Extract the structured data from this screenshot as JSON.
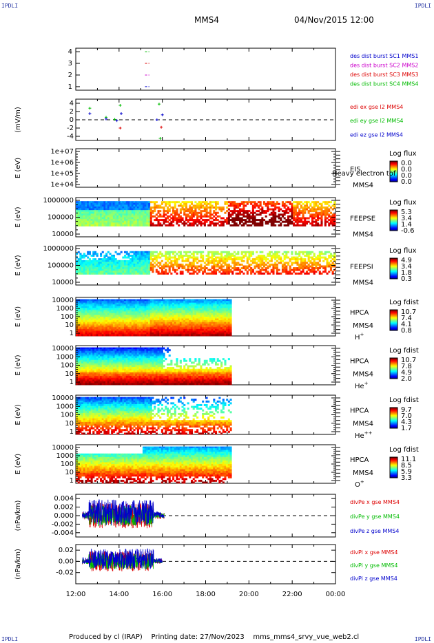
{
  "corner_tag": "IPDLI",
  "header": {
    "spacecraft": "MMS4",
    "datetime": "04/Nov/2015 12:00"
  },
  "footer": {
    "producer": "Produced by cl (IRAP)",
    "printing_date": "Printing date: 27/Nov/2023",
    "filename": "mms_mms4_srvy_vue_web2.cl"
  },
  "colors": {
    "mms1": "#0000cc",
    "mms2": "#cc00cc",
    "mms3": "#dd0000",
    "mms4": "#00bb00",
    "frame": "#000000"
  },
  "chart_data": [
    {
      "type": "line",
      "id": "burst",
      "ylim": [
        0.7,
        4.3
      ],
      "yticks": [
        1,
        2,
        3,
        4
      ],
      "legend": [
        {
          "text": "des dist burst SC1 MMS1",
          "color": "#0000cc"
        },
        {
          "text": "des dist burst SC2 MMS2",
          "color": "#cc00cc"
        },
        {
          "text": "des dist burst SC3 MMS3",
          "color": "#dd0000"
        },
        {
          "text": "des dist burst SC4 MMS4",
          "color": "#00bb00"
        }
      ],
      "series": [
        {
          "y": 4,
          "x": [
            15.2,
            15.4
          ],
          "color": "#00bb00"
        },
        {
          "y": 3,
          "x": [
            15.2,
            15.4
          ],
          "color": "#dd0000"
        },
        {
          "y": 2,
          "x": [
            15.2,
            15.4
          ],
          "color": "#cc00cc"
        },
        {
          "y": 1,
          "x": [
            15.2,
            15.4
          ],
          "color": "#0000cc"
        }
      ]
    },
    {
      "type": "scatter",
      "id": "edi",
      "ylabel": "(mV/m)",
      "ylim": [
        -5,
        5
      ],
      "yticks": [
        4,
        2,
        0,
        -2,
        -4
      ],
      "legend": [
        {
          "text": "edi ex gse l2 MMS4",
          "color": "#dd0000"
        },
        {
          "text": "edi ey gse l2 MMS4",
          "color": "#00bb00"
        },
        {
          "text": "edi ez gse l2 MMS4",
          "color": "#0000cc"
        }
      ],
      "points": [
        {
          "x": 12.65,
          "y": 2.8,
          "c": "#00bb00"
        },
        {
          "x": 12.65,
          "y": 1.5,
          "c": "#0000cc"
        },
        {
          "x": 13.4,
          "y": 0.6,
          "c": "#00bb00"
        },
        {
          "x": 13.4,
          "y": 0.2,
          "c": "#0000cc"
        },
        {
          "x": 13.8,
          "y": 0.1,
          "c": "#00bb00"
        },
        {
          "x": 13.9,
          "y": -0.2,
          "c": "#0000cc"
        },
        {
          "x": 14.05,
          "y": 3.5,
          "c": "#00bb00"
        },
        {
          "x": 14.05,
          "y": -2.0,
          "c": "#dd0000"
        },
        {
          "x": 14.1,
          "y": 1.5,
          "c": "#0000cc"
        },
        {
          "x": 15.75,
          "y": 0.0,
          "c": "#0000cc"
        },
        {
          "x": 15.85,
          "y": 3.8,
          "c": "#00bb00"
        },
        {
          "x": 15.9,
          "y": -4.5,
          "c": "#00bb00"
        },
        {
          "x": 15.95,
          "y": -1.8,
          "c": "#dd0000"
        },
        {
          "x": 16.0,
          "y": 1.2,
          "c": "#0000cc"
        }
      ]
    },
    {
      "type": "heatmap",
      "id": "eis",
      "ylabel": "E (eV)",
      "yticks": [
        "1e+07",
        "1e+06",
        "1e+05",
        "1e+04"
      ],
      "label": "EIS",
      "label2": "MMS4",
      "overlay": "Heavy electron tof",
      "cbar_title": "Log flux",
      "cbar_ticks": [
        "0.0",
        "0.0",
        "0.0",
        "0.0"
      ]
    },
    {
      "type": "heatmap",
      "id": "feepse",
      "ylabel": "E (eV)",
      "yticks": [
        "1000000",
        "100000",
        "10000"
      ],
      "label": "FEEPSE",
      "label2": "MMS4",
      "cbar_title": "Log flux",
      "cbar_ticks": [
        "5.3",
        "3.4",
        "1.4",
        "-0.6"
      ]
    },
    {
      "type": "heatmap",
      "id": "feepsi",
      "ylabel": "E (eV)",
      "yticks": [
        "1000000",
        "100000",
        "10000"
      ],
      "label": "FEEPSI",
      "label2": "MMS4",
      "cbar_title": "Log flux",
      "cbar_ticks": [
        "4.9",
        "3.4",
        "1.8",
        "0.3"
      ]
    },
    {
      "type": "heatmap",
      "id": "hpca_h",
      "ylabel": "E (eV)",
      "yticks": [
        "10000",
        "1000",
        "100",
        "10",
        "1"
      ],
      "label": "HPCA",
      "label2": "MMS4",
      "species": "H",
      "charge": "+",
      "cbar_title": "Log fdist",
      "cbar_ticks": [
        "10.7",
        "7.4",
        "4.1",
        "0.8"
      ]
    },
    {
      "type": "heatmap",
      "id": "hpca_he1",
      "ylabel": "E (eV)",
      "yticks": [
        "10000",
        "1000",
        "100",
        "10",
        "1"
      ],
      "label": "HPCA",
      "label2": "MMS4",
      "species": "He",
      "charge": "+",
      "cbar_title": "Log fdist",
      "cbar_ticks": [
        "10.7",
        "7.8",
        "4.9",
        "2.0"
      ]
    },
    {
      "type": "heatmap",
      "id": "hpca_he2",
      "ylabel": "E (eV)",
      "yticks": [
        "10000",
        "1000",
        "100",
        "10",
        "1"
      ],
      "label": "HPCA",
      "label2": "MMS4",
      "species": "He",
      "charge": "++",
      "cbar_title": "Log fdist",
      "cbar_ticks": [
        "9.7",
        "7.0",
        "4.3",
        "1.7"
      ]
    },
    {
      "type": "heatmap",
      "id": "hpca_o",
      "ylabel": "E (eV)",
      "yticks": [
        "10000",
        "1000",
        "100",
        "10",
        "1"
      ],
      "label": "HPCA",
      "label2": "MMS4",
      "species": "O",
      "charge": "+",
      "cbar_title": "Log fdist",
      "cbar_ticks": [
        "11.1",
        "8.5",
        "5.9",
        "3.3"
      ]
    },
    {
      "type": "line",
      "id": "divpe",
      "ylabel": "(nPa/km)",
      "ylim": [
        -0.005,
        0.005
      ],
      "yticks": [
        "0.004",
        "0.002",
        "0.000",
        "-0.002",
        "-0.004"
      ],
      "legend": [
        {
          "text": "divPe x gse MMS4",
          "color": "#dd0000"
        },
        {
          "text": "divPe y gse MMS4",
          "color": "#00bb00"
        },
        {
          "text": "divPe z gse MMS4",
          "color": "#0000cc"
        }
      ],
      "x_range": [
        12.3,
        16.1
      ],
      "amplitude": 0.003
    },
    {
      "type": "line",
      "id": "divpi",
      "ylabel": "(nPa/km)",
      "ylim": [
        -0.04,
        0.03
      ],
      "yticks": [
        "0.02",
        "0.00",
        "-0.02"
      ],
      "legend": [
        {
          "text": "divPi x gse MMS4",
          "color": "#dd0000"
        },
        {
          "text": "divPi y gse MMS4",
          "color": "#00bb00"
        },
        {
          "text": "divPi z gse MMS4",
          "color": "#0000cc"
        }
      ],
      "x_range": [
        12.3,
        16.0
      ],
      "amplitude": 0.018
    }
  ],
  "xaxis": {
    "xlim": [
      12,
      24
    ],
    "ticks": [
      "12:00",
      "14:00",
      "16:00",
      "18:00",
      "20:00",
      "22:00",
      "00:00"
    ]
  }
}
